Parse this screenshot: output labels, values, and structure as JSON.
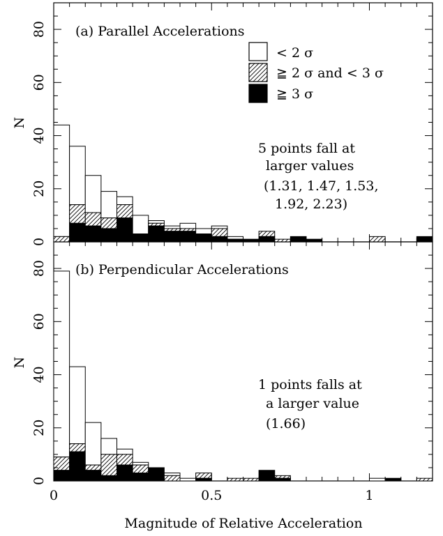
{
  "chart_data": {
    "type": "bar",
    "stacked": true,
    "xlabel": "Magnitude of Relative Acceleration",
    "ylabel": "N",
    "xlim": [
      0,
      1.2
    ],
    "x_ticks": [
      "0",
      "0.5",
      "1"
    ],
    "ylim": [
      0,
      90
    ],
    "y_ticks": [
      "0",
      "20",
      "40",
      "60",
      "80"
    ],
    "bin_width": 0.05,
    "bin_starts": [
      0,
      0.05,
      0.1,
      0.15,
      0.2,
      0.25,
      0.3,
      0.35,
      0.4,
      0.45,
      0.5,
      0.55,
      0.6,
      0.65,
      0.7,
      0.75,
      0.8,
      0.85,
      0.9,
      0.95,
      1.0,
      1.05,
      1.1,
      1.15
    ],
    "legend": {
      "placement": "top-center",
      "entries": [
        {
          "key": "low",
          "label": "< 2 σ",
          "pattern": "open"
        },
        {
          "key": "mid",
          "label": "≧ 2 σ and < 3 σ",
          "pattern": "hatched"
        },
        {
          "key": "high",
          "label": "≧ 3 σ",
          "pattern": "solid"
        }
      ]
    },
    "panels": [
      {
        "title": "(a) Parallel Accelerations",
        "annotation": [
          "5 points fall at",
          "larger values",
          "(1.31, 1.47, 1.53,",
          "1.92, 2.23)"
        ],
        "totals": [
          44,
          36,
          25,
          19,
          17,
          10,
          8,
          6,
          7,
          5,
          6,
          2,
          1,
          4,
          1,
          2,
          1,
          0,
          0,
          0,
          2,
          0,
          0,
          2
        ],
        "mid_tops": [
          2,
          14,
          11,
          9,
          14,
          3,
          7,
          5,
          5,
          3,
          5,
          1,
          1,
          4,
          1,
          2,
          1,
          0,
          0,
          0,
          2,
          0,
          0,
          2
        ],
        "high": [
          0,
          7,
          6,
          5,
          9,
          3,
          6,
          4,
          4,
          3,
          2,
          1,
          1,
          2,
          0,
          2,
          1,
          0,
          0,
          0,
          0,
          0,
          0,
          2
        ]
      },
      {
        "title": "(b) Perpendicular Accelerations",
        "annotation": [
          "1 points falls at",
          "a larger value",
          "(1.66)"
        ],
        "totals": [
          79,
          43,
          22,
          16,
          12,
          7,
          5,
          3,
          1,
          3,
          0,
          1,
          1,
          4,
          2,
          0,
          0,
          0,
          0,
          0,
          1,
          1,
          0,
          1
        ],
        "mid_tops": [
          9,
          14,
          6,
          10,
          10,
          6,
          5,
          2,
          0,
          3,
          0,
          1,
          1,
          4,
          2,
          0,
          0,
          0,
          0,
          0,
          0,
          1,
          0,
          1
        ],
        "high": [
          4,
          11,
          4,
          2,
          6,
          3,
          5,
          0,
          0,
          1,
          0,
          0,
          0,
          4,
          1,
          0,
          0,
          0,
          0,
          0,
          0,
          1,
          0,
          0
        ]
      }
    ]
  }
}
